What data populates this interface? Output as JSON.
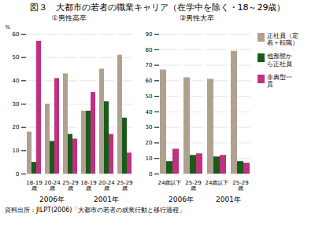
{
  "chart_data": [
    {
      "type": "bar",
      "title": "図３　大都市の若者の職業キャリア（在学中を除く・18～29歳）",
      "subtitle": "①男性高卒",
      "footer": "資料出所：JILPT(2006)「大都市の若者の就業行動と移行過程」",
      "ylabel": "%",
      "categories": [
        "18-19\n歳",
        "20-24\n歳",
        "25-29\n歳",
        "18-19\n歳",
        "20-24\n歳",
        "25-29\n歳"
      ],
      "groups": [
        "2006年",
        "2006年",
        "2006年",
        "2001年",
        "2001年",
        "2001年"
      ],
      "series": [
        {
          "name": "正社員（定\n着＋転職）",
          "color": "#b0a090",
          "values": [
            18,
            30,
            43,
            27,
            45,
            51
          ]
        },
        {
          "name": "他形態か\nら正社員",
          "color": "#1a5a1a",
          "values": [
            5,
            14,
            17,
            27,
            31,
            24
          ]
        },
        {
          "name": "非典型一\n貫",
          "color": "#c03080",
          "values": [
            57,
            41,
            15,
            35,
            17,
            9
          ]
        }
      ],
      "ylim": [
        0,
        60
      ],
      "yticks": [
        0,
        10,
        20,
        30,
        40,
        50,
        60
      ],
      "grid": true
    },
    {
      "type": "bar",
      "subtitle": "②男性大卒",
      "categories": [
        "24歳以下",
        "25-29\n歳",
        "24歳以下",
        "25-29\n歳"
      ],
      "groups": [
        "2006年",
        "2006年",
        "2001年",
        "2001年"
      ],
      "series": [
        {
          "name": "正社員（定\n着＋転職）",
          "color": "#b0a090",
          "values": [
            67,
            62,
            61,
            79
          ]
        },
        {
          "name": "他形態か\nら正社員",
          "color": "#1a5a1a",
          "values": [
            8,
            12,
            11,
            8
          ]
        },
        {
          "name": "非典型一\n貫",
          "color": "#c03080",
          "values": [
            16,
            13,
            12,
            7
          ]
        }
      ],
      "ylim": [
        0,
        90
      ],
      "yticks": [
        0,
        10,
        20,
        30,
        40,
        50,
        60,
        70,
        80,
        90
      ],
      "grid": true,
      "legend": "right"
    }
  ]
}
